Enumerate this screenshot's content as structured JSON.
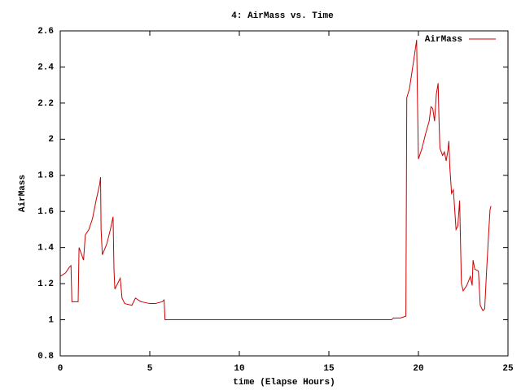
{
  "chart_data": {
    "type": "line",
    "title": "4: AirMass vs. Time",
    "x_label": "time (Elapse Hours)",
    "y_label": "AirMass",
    "xlim": [
      0,
      25
    ],
    "xticks": [
      0,
      5,
      10,
      15,
      20,
      25
    ],
    "ylim": [
      0.8,
      2.6
    ],
    "yticks": [
      0.8,
      1,
      1.2,
      1.4,
      1.6,
      1.8,
      2,
      2.2,
      2.4,
      2.6
    ],
    "legend": "top-right",
    "x": [
      0,
      0.3,
      0.5,
      0.6,
      0.65,
      0.9,
      1.0,
      1.05,
      1.2,
      1.3,
      1.4,
      1.6,
      1.8,
      2.0,
      2.2,
      2.25,
      2.28,
      2.35,
      2.6,
      2.8,
      2.95,
      3.0,
      3.05,
      3.2,
      3.35,
      3.45,
      3.6,
      4.0,
      4.2,
      4.5,
      5.0,
      5.3,
      5.7,
      5.8,
      5.85,
      18.5,
      18.6,
      18.8,
      19.0,
      19.3,
      19.35,
      19.5,
      19.8,
      19.9,
      19.95,
      20.0,
      20.2,
      20.4,
      20.6,
      20.7,
      20.8,
      20.9,
      21.0,
      21.1,
      21.15,
      21.2,
      21.35,
      21.45,
      21.55,
      21.65,
      21.7,
      21.75,
      21.85,
      21.95,
      22.0,
      22.1,
      22.2,
      22.3,
      22.4,
      22.5,
      22.7,
      22.9,
      23.0,
      23.05,
      23.15,
      23.35,
      23.45,
      23.6,
      23.7,
      23.8,
      23.95,
      24.0,
      24.05
    ],
    "series": [
      {
        "name": "AirMass",
        "color": "#cc0000",
        "values": [
          1.24,
          1.26,
          1.29,
          1.3,
          1.1,
          1.1,
          1.1,
          1.4,
          1.36,
          1.33,
          1.47,
          1.5,
          1.56,
          1.66,
          1.75,
          1.79,
          1.5,
          1.36,
          1.42,
          1.5,
          1.57,
          1.28,
          1.17,
          1.2,
          1.23,
          1.12,
          1.09,
          1.08,
          1.12,
          1.1,
          1.09,
          1.09,
          1.1,
          1.11,
          1.0,
          1.0,
          1.01,
          1.01,
          1.01,
          1.02,
          2.23,
          2.28,
          2.48,
          2.55,
          2.2,
          1.89,
          1.95,
          2.03,
          2.1,
          2.18,
          2.17,
          2.1,
          2.25,
          2.31,
          2.1,
          1.95,
          1.91,
          1.93,
          1.88,
          1.94,
          1.99,
          1.85,
          1.7,
          1.72,
          1.65,
          1.5,
          1.52,
          1.66,
          1.2,
          1.16,
          1.19,
          1.24,
          1.19,
          1.33,
          1.28,
          1.27,
          1.08,
          1.05,
          1.06,
          1.26,
          1.53,
          1.61,
          1.63
        ]
      }
    ]
  }
}
